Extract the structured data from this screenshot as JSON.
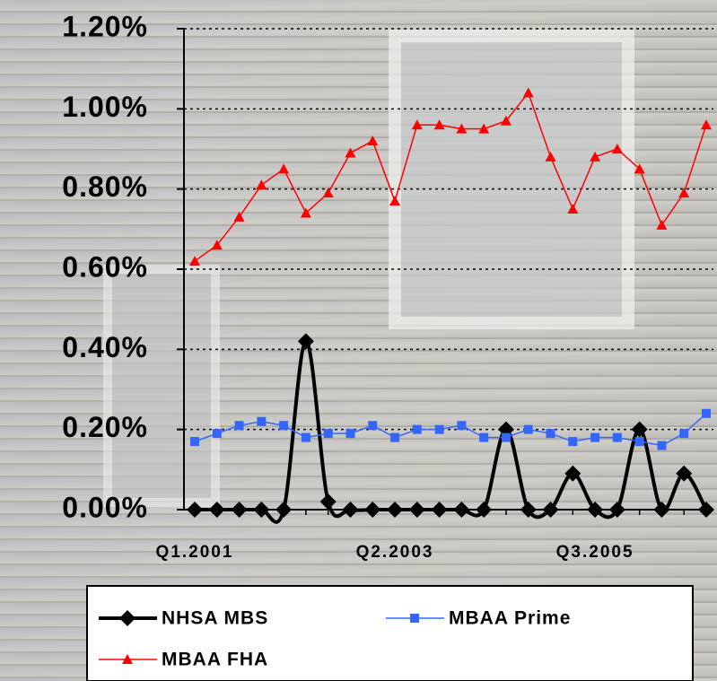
{
  "chart_data": {
    "type": "line",
    "categories": [
      "Q1.2001",
      null,
      null,
      null,
      null,
      null,
      null,
      null,
      null,
      "Q2.2003",
      null,
      null,
      null,
      null,
      null,
      null,
      null,
      null,
      "Q3.2005",
      null,
      null,
      null,
      null,
      null
    ],
    "series": [
      {
        "name": "NHSA MBS",
        "color": "#000000",
        "marker": "diamond",
        "smooth": true,
        "values": [
          0,
          0,
          0,
          0,
          0,
          0.42,
          0.02,
          0,
          0,
          0,
          0,
          0,
          0,
          0,
          0.2,
          0,
          0,
          0.09,
          0,
          0,
          0.2,
          0,
          0.09,
          0
        ]
      },
      {
        "name": "MBAA Prime",
        "color": "#3366ff",
        "marker": "square",
        "smooth": false,
        "values": [
          0.17,
          0.19,
          0.21,
          0.22,
          0.21,
          0.18,
          0.19,
          0.19,
          0.21,
          0.18,
          0.2,
          0.2,
          0.21,
          0.18,
          0.18,
          0.2,
          0.19,
          0.17,
          0.18,
          0.18,
          0.17,
          0.16,
          0.19,
          0.24
        ]
      },
      {
        "name": "MBAA FHA",
        "color": "#ff0000",
        "marker": "triangle",
        "smooth": false,
        "values": [
          0.62,
          0.66,
          0.73,
          0.81,
          0.85,
          0.74,
          0.79,
          0.89,
          0.92,
          0.77,
          0.96,
          0.96,
          0.95,
          0.95,
          0.97,
          1.04,
          0.88,
          0.75,
          0.88,
          0.9,
          0.85,
          0.71,
          0.79,
          0.96
        ]
      }
    ],
    "ylim": [
      0,
      1.2
    ],
    "yticks": [
      {
        "value": 0,
        "label": "0.00%"
      },
      {
        "value": 0.2,
        "label": "0.20%"
      },
      {
        "value": 0.4,
        "label": "0.40%"
      },
      {
        "value": 0.6,
        "label": "0.60%"
      },
      {
        "value": 0.8,
        "label": "0.80%"
      },
      {
        "value": 1.0,
        "label": "1.00%"
      },
      {
        "value": 1.2,
        "label": "1.20%"
      }
    ],
    "grid": true
  }
}
